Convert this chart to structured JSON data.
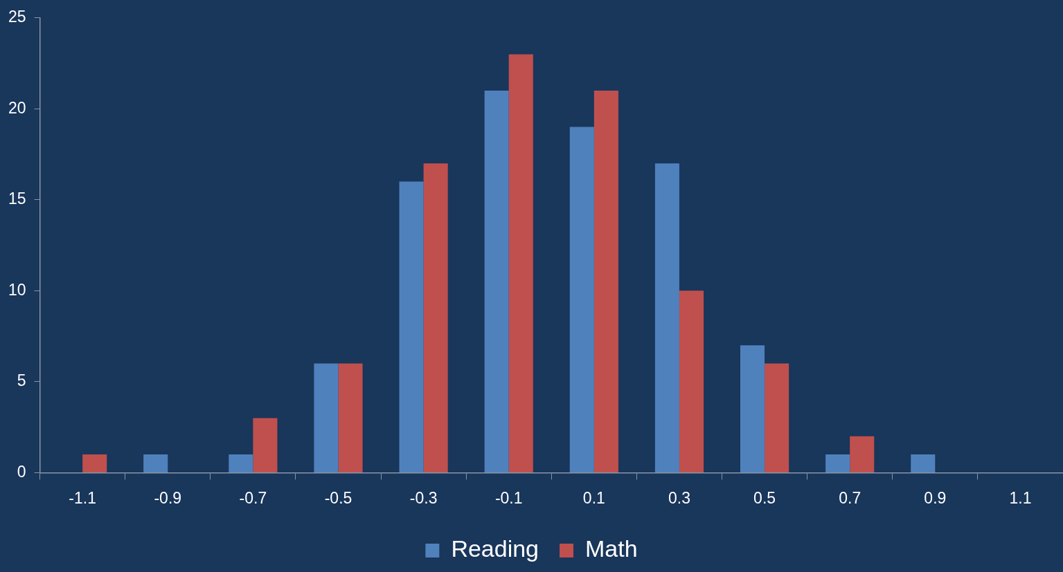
{
  "chart_data": {
    "type": "bar",
    "categories": [
      "-1.1",
      "-0.9",
      "-0.7",
      "-0.5",
      "-0.3",
      "-0.1",
      "0.1",
      "0.3",
      "0.5",
      "0.7",
      "0.9",
      "1.1"
    ],
    "series": [
      {
        "name": "Reading",
        "color": "#4f81bd",
        "values": [
          0,
          1,
          1,
          6,
          16,
          21,
          19,
          17,
          7,
          1,
          1,
          0
        ]
      },
      {
        "name": "Math",
        "color": "#c0504d",
        "values": [
          1,
          0,
          3,
          6,
          17,
          23,
          21,
          10,
          6,
          2,
          0,
          0
        ]
      }
    ],
    "ylim": [
      0,
      25
    ],
    "yticks": [
      0,
      5,
      10,
      15,
      20,
      25
    ],
    "grid": false,
    "legend": "bottom"
  }
}
